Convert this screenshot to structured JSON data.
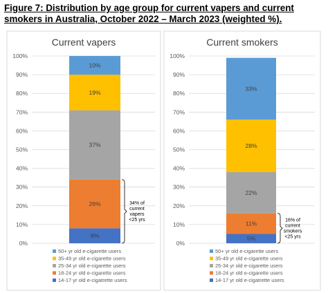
{
  "figure_title": "Figure 7: Distribution by age group for current vapers and current smokers in Australia, October 2022 – March 2023 (weighted %).",
  "colors": {
    "cat_14_17": "#4472C4",
    "cat_18_24": "#ED7D31",
    "cat_25_34": "#A5A5A5",
    "cat_35_49": "#FFC000",
    "cat_50_plus": "#5B9BD5",
    "panel_border": "#d9d9d9",
    "grid": "#d9d9d9"
  },
  "chart_data": [
    {
      "type": "bar",
      "stacked": true,
      "title": "Current vapers",
      "ylim": [
        0,
        100
      ],
      "yticks": [
        "0%",
        "10%",
        "20%",
        "30%",
        "40%",
        "50%",
        "60%",
        "70%",
        "80%",
        "90%",
        "100%"
      ],
      "series": [
        {
          "name": "14-17 yr old e-cigatrette users",
          "value": 8,
          "label": "8%",
          "color_key": "cat_14_17"
        },
        {
          "name": "18-24 yr old e-cigarette users",
          "value": 26,
          "label": "26%",
          "color_key": "cat_18_24"
        },
        {
          "name": "25-34 yr old e-cigarette users",
          "value": 37,
          "label": "37%",
          "color_key": "cat_25_34"
        },
        {
          "name": "35-49 yr old e-cigarette users",
          "value": 19,
          "label": "19%",
          "color_key": "cat_35_49"
        },
        {
          "name": "50+ yr old e-cigarette users",
          "value": 10,
          "label": "10%",
          "color_key": "cat_50_plus"
        }
      ],
      "annotation": {
        "lines": [
          "34% of",
          "current",
          "vapers",
          "<25 yrs"
        ],
        "from": 0,
        "to": 34
      },
      "legend_position": "bottom"
    },
    {
      "type": "bar",
      "stacked": true,
      "title": "Current smokers",
      "ylim": [
        0,
        100
      ],
      "yticks": [
        "0%",
        "10%",
        "20%",
        "30%",
        "40%",
        "50%",
        "60%",
        "70%",
        "80%",
        "90%",
        "100%"
      ],
      "series": [
        {
          "name": "14-17 yr old e-cigatrette users",
          "value": 5,
          "label": "5%",
          "color_key": "cat_14_17"
        },
        {
          "name": "18-24 yr old e-cigarette users",
          "value": 11,
          "label": "11%",
          "color_key": "cat_18_24"
        },
        {
          "name": "25-34 yr old e-cigarette users",
          "value": 22,
          "label": "22%",
          "color_key": "cat_25_34"
        },
        {
          "name": "35-49 yr old e-cigarette users",
          "value": 28,
          "label": "28%",
          "color_key": "cat_35_49"
        },
        {
          "name": "50+ yr old e-cigarette users",
          "value": 33,
          "label": "33%",
          "color_key": "cat_50_plus"
        }
      ],
      "annotation": {
        "lines": [
          "16% of",
          "current",
          "smokers",
          "<25 yrs"
        ],
        "from": 0,
        "to": 16
      },
      "legend_position": "bottom"
    }
  ]
}
